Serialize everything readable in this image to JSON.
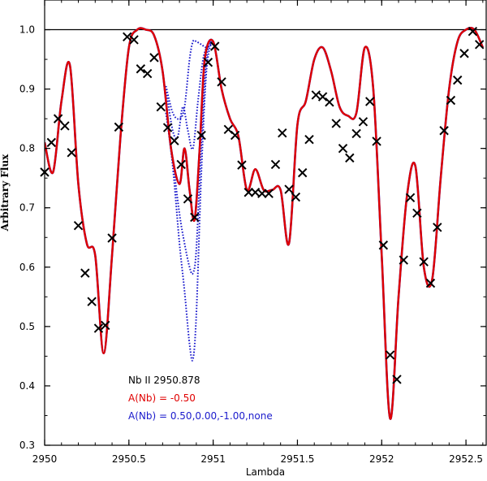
{
  "chart_data": {
    "type": "line",
    "title": "",
    "xlabel": "Lambda",
    "ylabel": "Arbitrary Flux",
    "xlim": [
      2950.0,
      2952.62
    ],
    "ylim": [
      0.3,
      1.05
    ],
    "grid": false,
    "xticks": [
      2950,
      2950.5,
      2951,
      2951.5,
      2952,
      2952.5
    ],
    "xtick_labels": [
      "2950",
      "2950.5",
      "2951",
      "2951.5",
      "2952",
      "2952.5"
    ],
    "yticks": [
      0.3,
      0.4,
      0.5,
      0.6,
      0.7,
      0.8,
      0.9,
      1.0
    ],
    "ytick_labels": [
      "0.3",
      "0.4",
      "0.5",
      "0.6",
      "0.7",
      "0.8",
      "0.9",
      "1.0"
    ],
    "continuum_level": 1.0,
    "legend": {
      "placement": "bottom-center",
      "line": "Nb II 2950.878",
      "red_label": "A(Nb) = -0.50",
      "blue_label": "A(Nb) = 0.50,0.00,-1.00,none"
    },
    "colors": {
      "observed": "#000000",
      "best_fit": "#e00000",
      "alternatives": "#1a1acc",
      "legend_title": "#000000"
    },
    "series": [
      {
        "name": "observed",
        "style": "markers-x",
        "x": [
          2950.0,
          2950.04,
          2950.08,
          2950.12,
          2950.16,
          2950.2,
          2950.24,
          2950.28,
          2950.32,
          2950.36,
          2950.4,
          2950.44,
          2950.49,
          2950.53,
          2950.57,
          2950.61,
          2950.65,
          2950.69,
          2950.73,
          2950.77,
          2950.81,
          2950.85,
          2950.89,
          2950.93,
          2950.97,
          2951.01,
          2951.05,
          2951.09,
          2951.13,
          2951.17,
          2951.21,
          2951.25,
          2951.29,
          2951.33,
          2951.37,
          2951.41,
          2951.45,
          2951.49,
          2951.53,
          2951.57,
          2951.61,
          2951.65,
          2951.69,
          2951.73,
          2951.77,
          2951.81,
          2951.85,
          2951.89,
          2951.93,
          2951.97,
          2952.01,
          2952.05,
          2952.09,
          2952.13,
          2952.17,
          2952.21,
          2952.25,
          2952.29,
          2952.33,
          2952.37,
          2952.41,
          2952.45,
          2952.49,
          2952.54,
          2952.58
        ],
        "y": [
          0.76,
          0.81,
          0.85,
          0.838,
          0.793,
          0.67,
          0.59,
          0.542,
          0.497,
          0.502,
          0.649,
          0.836,
          0.988,
          0.983,
          0.934,
          0.926,
          0.953,
          0.87,
          0.835,
          0.813,
          0.773,
          0.715,
          0.684,
          0.822,
          0.945,
          0.972,
          0.912,
          0.832,
          0.822,
          0.772,
          0.726,
          0.726,
          0.724,
          0.724,
          0.773,
          0.826,
          0.731,
          0.718,
          0.759,
          0.815,
          0.89,
          0.887,
          0.878,
          0.842,
          0.8,
          0.784,
          0.825,
          0.845,
          0.879,
          0.812,
          0.637,
          0.452,
          0.411,
          0.612,
          0.717,
          0.691,
          0.609,
          0.573,
          0.667,
          0.83,
          0.881,
          0.915,
          0.96,
          0.997,
          0.975
        ]
      },
      {
        "name": "A(Nb) = -0.50",
        "style": "solid",
        "x": [
          2950.0,
          2950.05,
          2950.1,
          2950.15,
          2950.2,
          2950.25,
          2950.3,
          2950.35,
          2950.4,
          2950.45,
          2950.5,
          2950.55,
          2950.6,
          2950.65,
          2950.7,
          2950.75,
          2950.8,
          2950.83,
          2950.86,
          2950.89,
          2950.92,
          2950.95,
          2951.0,
          2951.05,
          2951.1,
          2951.15,
          2951.2,
          2951.25,
          2951.3,
          2951.35,
          2951.4,
          2951.45,
          2951.5,
          2951.55,
          2951.6,
          2951.65,
          2951.7,
          2951.75,
          2951.8,
          2951.85,
          2951.9,
          2951.95,
          2952.0,
          2952.05,
          2952.1,
          2952.15,
          2952.2,
          2952.25,
          2952.3,
          2952.35,
          2952.4,
          2952.45,
          2952.5,
          2952.55,
          2952.6
        ],
        "y": [
          0.81,
          0.76,
          0.88,
          0.94,
          0.74,
          0.64,
          0.62,
          0.455,
          0.62,
          0.82,
          0.97,
          1.0,
          1.0,
          0.99,
          0.93,
          0.8,
          0.74,
          0.8,
          0.73,
          0.68,
          0.8,
          0.95,
          0.98,
          0.9,
          0.85,
          0.82,
          0.73,
          0.765,
          0.73,
          0.73,
          0.73,
          0.64,
          0.84,
          0.88,
          0.95,
          0.97,
          0.93,
          0.87,
          0.855,
          0.86,
          0.97,
          0.9,
          0.62,
          0.345,
          0.55,
          0.72,
          0.77,
          0.6,
          0.58,
          0.75,
          0.9,
          0.98,
          1.0,
          1.0,
          0.97
        ]
      },
      {
        "name": "A(Nb) = 0.50",
        "style": "dotted",
        "x": [
          2950.72,
          2950.76,
          2950.8,
          2950.83,
          2950.86,
          2950.88,
          2950.9,
          2950.93,
          2950.96,
          2950.99
        ],
        "y": [
          0.86,
          0.77,
          0.64,
          0.56,
          0.47,
          0.445,
          0.52,
          0.76,
          0.93,
          0.98
        ]
      },
      {
        "name": "A(Nb) = 0.00",
        "style": "dotted",
        "x": [
          2950.72,
          2950.76,
          2950.8,
          2950.83,
          2950.86,
          2950.88,
          2950.9,
          2950.93,
          2950.96,
          2950.99
        ],
        "y": [
          0.86,
          0.78,
          0.69,
          0.64,
          0.6,
          0.59,
          0.63,
          0.81,
          0.95,
          0.98
        ]
      },
      {
        "name": "A(Nb) = -1.00",
        "style": "dotted",
        "x": [
          2950.72,
          2950.76,
          2950.79,
          2950.82,
          2950.85,
          2950.88,
          2950.91,
          2950.94,
          2950.97,
          2950.99
        ],
        "y": [
          0.9,
          0.83,
          0.82,
          0.87,
          0.83,
          0.8,
          0.88,
          0.95,
          0.975,
          0.98
        ]
      },
      {
        "name": "none",
        "style": "dotted",
        "x": [
          2950.72,
          2950.76,
          2950.8,
          2950.83,
          2950.86,
          2950.88,
          2950.9,
          2950.93,
          2950.96,
          2950.99
        ],
        "y": [
          0.905,
          0.86,
          0.85,
          0.87,
          0.95,
          0.98,
          0.98,
          0.975,
          0.97,
          0.975
        ]
      }
    ]
  }
}
